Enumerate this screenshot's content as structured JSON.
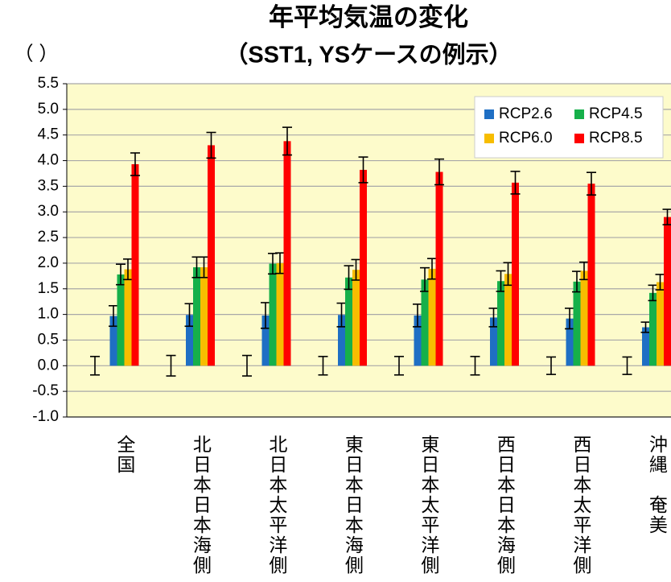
{
  "chart_data": {
    "type": "bar",
    "title": "年平均気温の変化",
    "subtitle": "（SST1, YSケースの例示）",
    "y_label": "（ ）",
    "categories": [
      "全国",
      "北日本日本海側",
      "北日本太平洋側",
      "東日本日本海側",
      "東日本太平洋側",
      "西日本日本海側",
      "西日本太平洋側",
      "沖縄　奄美"
    ],
    "series": [
      {
        "color": "#000000",
        "values": [
          0,
          0,
          0,
          0,
          0,
          0,
          0,
          0
        ],
        "errors": [
          0.18,
          0.2,
          0.2,
          0.18,
          0.18,
          0.18,
          0.17,
          0.17
        ]
      },
      {
        "name": "RCP2.6",
        "color": "#1f6fc4",
        "values": [
          0.97,
          0.99,
          0.98,
          0.99,
          0.98,
          0.94,
          0.92,
          0.75
        ],
        "errors": [
          0.2,
          0.22,
          0.25,
          0.23,
          0.22,
          0.18,
          0.2,
          0.1
        ]
      },
      {
        "name": "RCP4.5",
        "color": "#16b04a",
        "values": [
          1.78,
          1.92,
          1.99,
          1.72,
          1.68,
          1.65,
          1.64,
          1.42
        ],
        "errors": [
          0.2,
          0.2,
          0.2,
          0.23,
          0.23,
          0.2,
          0.2,
          0.15
        ]
      },
      {
        "name": "RCP6.0",
        "color": "#f7bd00",
        "values": [
          1.88,
          1.92,
          2.0,
          1.87,
          1.89,
          1.79,
          1.85,
          1.63
        ],
        "errors": [
          0.2,
          0.2,
          0.2,
          0.2,
          0.2,
          0.22,
          0.17,
          0.15
        ]
      },
      {
        "name": "RCP8.5",
        "color": "#ff0000",
        "values": [
          3.93,
          4.3,
          4.38,
          3.82,
          3.78,
          3.57,
          3.55,
          2.9
        ],
        "errors": [
          0.22,
          0.25,
          0.27,
          0.25,
          0.25,
          0.22,
          0.22,
          0.15
        ]
      }
    ],
    "ylim": [
      -1.0,
      5.5
    ],
    "yticks": [
      5.5,
      {
        "value": 5,
        "label": "5.0"
      },
      4.5,
      {
        "value": 4,
        "label": "4.0"
      },
      3.5,
      {
        "value": 3,
        "label": "3.0"
      },
      2.5,
      {
        "value": 2,
        "label": "2.0"
      },
      1.5,
      {
        "value": 1,
        "label": "1.0"
      },
      0.5,
      {
        "value": 0,
        "label": "0.0"
      },
      -0.5,
      {
        "value": -1,
        "label": "-1.0"
      }
    ],
    "grid": true,
    "legend": "upper right"
  }
}
